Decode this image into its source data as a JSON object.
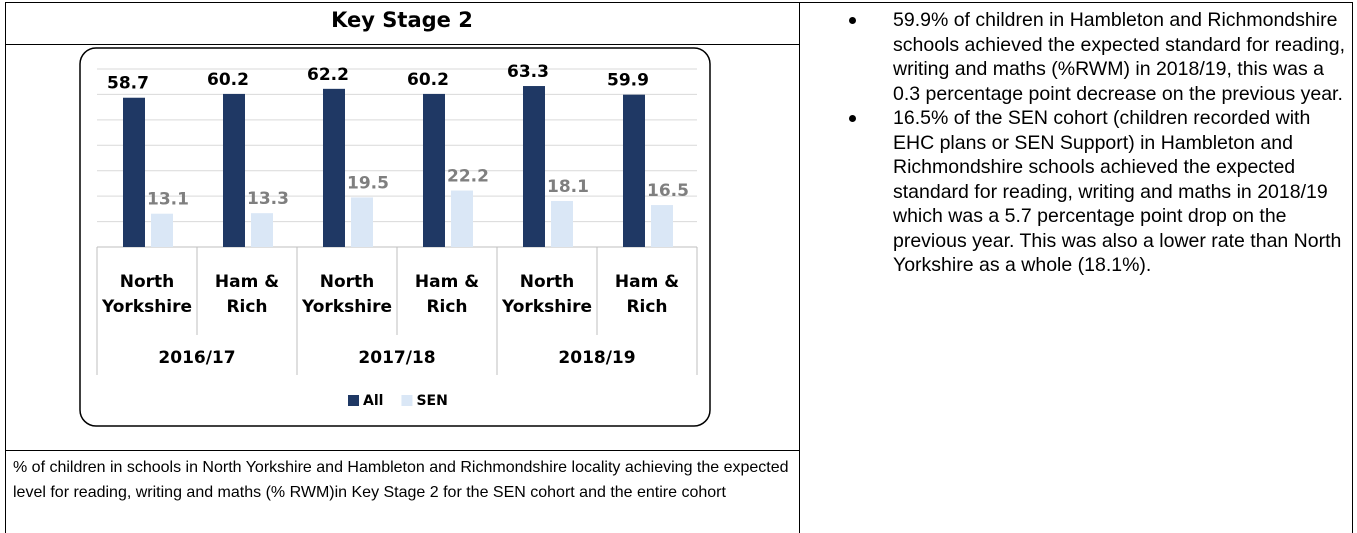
{
  "header": {
    "title": "Key Stage 2"
  },
  "chart_data": {
    "type": "bar",
    "categories": [
      "North Yorkshire",
      "Ham & Rich",
      "North Yorkshire",
      "Ham & Rich",
      "North Yorkshire",
      "Ham & Rich"
    ],
    "groups": [
      "2016/17",
      "2017/18",
      "2018/19"
    ],
    "series": [
      {
        "name": "All",
        "color": "#1f3864",
        "values": [
          58.7,
          60.2,
          62.2,
          60.2,
          63.3,
          59.9
        ]
      },
      {
        "name": "SEN",
        "color": "#dae7f6",
        "values": [
          13.1,
          13.3,
          19.5,
          22.2,
          18.1,
          16.5
        ]
      }
    ],
    "ylim": [
      0,
      70
    ],
    "yticks": [
      0,
      10,
      20,
      30,
      40,
      50,
      60,
      70
    ],
    "grid": true,
    "legend": "bottom"
  },
  "caption": "% of children in schools in North Yorkshire and Hambleton and Richmondshire locality achieving the expected level for reading, writing and maths (% RWM)in Key Stage 2 for the SEN cohort and the entire cohort",
  "bullets": [
    "59.9% of children in Hambleton and Richmondshire schools achieved the expected standard for reading, writing and maths (%RWM) in 2018/19, this was a 0.3 percentage point decrease on the previous year.",
    "16.5% of the SEN cohort (children recorded with EHC plans or SEN Support) in Hambleton and Richmondshire schools achieved the expected standard for reading, writing and maths in 2018/19 which was a 5.7 percentage point drop on the previous year. This was also a lower rate than North Yorkshire as a whole (18.1%)."
  ]
}
